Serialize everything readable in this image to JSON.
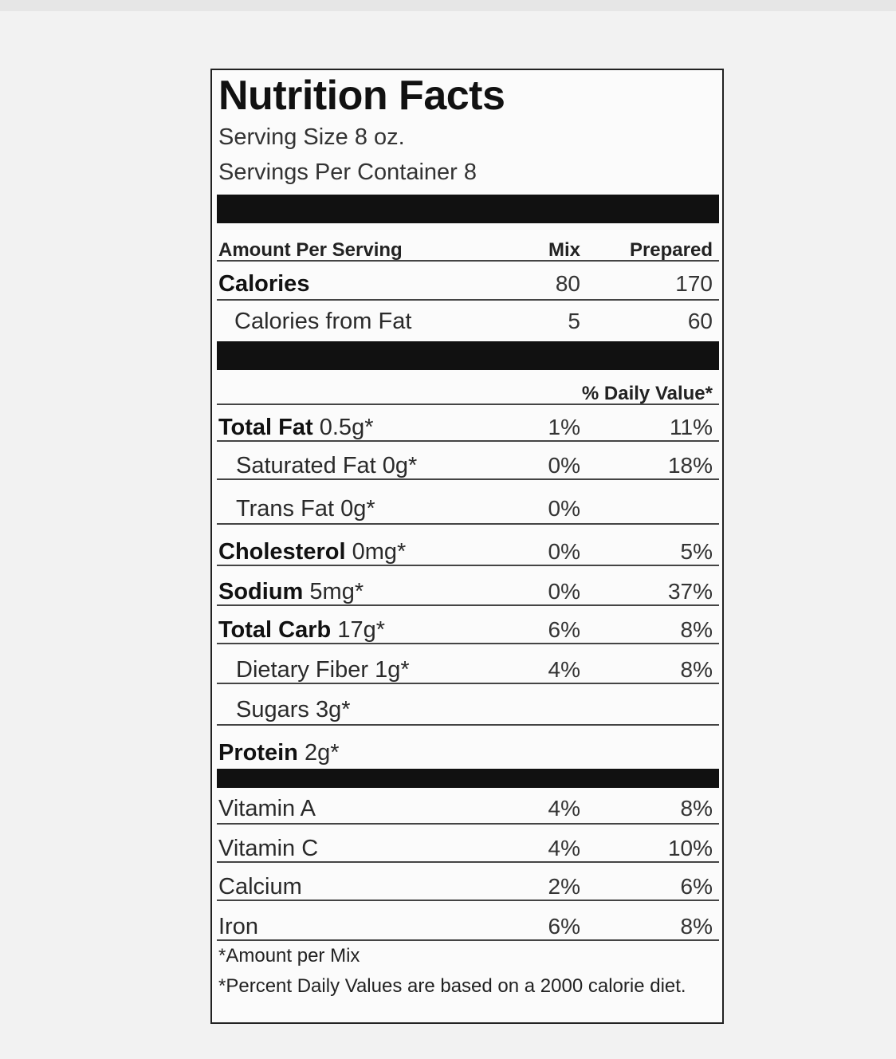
{
  "title": "Nutrition Facts",
  "serving_size": "Serving Size 8 oz.",
  "servings_per_container": "Servings Per Container 8",
  "header": {
    "amount_per_serving": "Amount Per Serving",
    "mix": "Mix",
    "prepared": "Prepared"
  },
  "calories": {
    "label": "Calories",
    "mix": "80",
    "prepared": "170"
  },
  "calories_from_fat": {
    "label": "Calories from Fat",
    "mix": "5",
    "prepared": "60"
  },
  "daily_value_header": "% Daily Value*",
  "nutrients": [
    {
      "name": "Total Fat",
      "amount": "0.5g*",
      "mix": "1%",
      "prepared": "11%"
    },
    {
      "name": "Saturated Fat",
      "amount": "0g*",
      "mix": "0%",
      "prepared": "18%"
    },
    {
      "name": "Trans Fat",
      "amount": "0g*",
      "mix": "0%",
      "prepared": ""
    },
    {
      "name": "Cholesterol",
      "amount": "0mg*",
      "mix": "0%",
      "prepared": "5%"
    },
    {
      "name": "Sodium",
      "amount": "5mg*",
      "mix": "0%",
      "prepared": "37%"
    },
    {
      "name": "Total Carb",
      "amount": "17g*",
      "mix": "6%",
      "prepared": "8%"
    },
    {
      "name": "Dietary Fiber",
      "amount": "1g*",
      "mix": "4%",
      "prepared": "8%"
    },
    {
      "name": "Sugars",
      "amount": "3g*",
      "mix": "",
      "prepared": ""
    },
    {
      "name": "Protein",
      "amount": "2g*",
      "mix": "",
      "prepared": ""
    }
  ],
  "vitamins": [
    {
      "name": "Vitamin A",
      "mix": "4%",
      "prepared": "8%"
    },
    {
      "name": "Vitamin C",
      "mix": "4%",
      "prepared": "10%"
    },
    {
      "name": "Calcium",
      "mix": "2%",
      "prepared": "6%"
    },
    {
      "name": "Iron",
      "mix": "6%",
      "prepared": "8%"
    }
  ],
  "footnotes": [
    "*Amount per Mix",
    "*Percent Daily Values are based on a 2000 calorie diet."
  ]
}
